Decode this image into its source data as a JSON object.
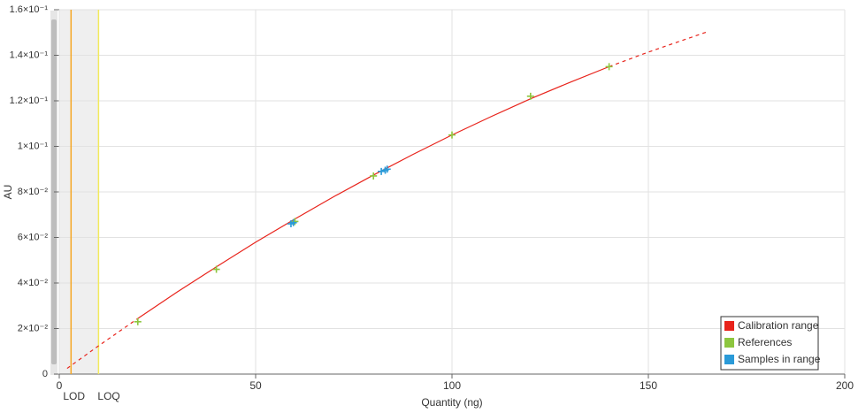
{
  "chart_data": {
    "type": "line",
    "x_label": "Quantity (ng)",
    "y_label": "AU",
    "xlim": [
      0,
      200
    ],
    "xticks": [
      0,
      50,
      100,
      150,
      200
    ],
    "ylim": [
      0,
      0.16
    ],
    "yticks": [
      0,
      {
        "value": 0.02,
        "label": "2×10⁻²"
      },
      {
        "value": 0.04,
        "label": "4×10⁻²"
      },
      {
        "value": 0.06,
        "label": "6×10⁻²"
      },
      {
        "value": 0.08,
        "label": "8×10⁻²"
      },
      {
        "value": 0.1,
        "label": "1×10⁻¹"
      },
      {
        "value": 0.12,
        "label": "1.2×10⁻¹"
      },
      {
        "value": 0.14,
        "label": "1.4×10⁻¹"
      },
      {
        "value": 0.16,
        "label": "1.6×10⁻¹"
      }
    ],
    "grid": true,
    "legend": "lower-right",
    "limits": [
      {
        "label": "LOD",
        "value": 3,
        "color": "#f5a623"
      },
      {
        "label": "LOQ",
        "value": 10,
        "color": "#f2ea5c"
      }
    ],
    "series": [
      {
        "name": "Calibration range",
        "type": "line",
        "color": "#e8231b",
        "x": [
          20,
          30,
          40,
          50,
          60,
          70,
          80,
          90,
          100,
          110,
          120,
          130,
          140
        ],
        "values": [
          0.0244,
          0.036,
          0.0471,
          0.0579,
          0.0681,
          0.078,
          0.0874,
          0.0964,
          0.105,
          0.1131,
          0.1209,
          0.1281,
          0.135
        ]
      },
      {
        "name": "References",
        "type": "scatter",
        "color": "#8dc63f",
        "x": [
          20,
          40,
          60,
          80,
          100,
          120,
          140
        ],
        "values": [
          0.023,
          0.046,
          0.067,
          0.087,
          0.105,
          0.122,
          0.135
        ]
      },
      {
        "name": "Samples in range",
        "type": "scatter",
        "color": "#2a9ad8",
        "x": [
          59,
          59.6,
          82,
          83,
          83.5
        ],
        "values": [
          0.066,
          0.0665,
          0.089,
          0.0895,
          0.09
        ]
      }
    ],
    "extrapolation": [
      {
        "color": "#e8231b",
        "x": [
          2,
          10,
          20
        ],
        "values": [
          0.0025,
          0.0124,
          0.0244
        ]
      },
      {
        "color": "#e8231b",
        "x": [
          140,
          150,
          165
        ],
        "values": [
          0.135,
          0.1414,
          0.1503
        ]
      }
    ]
  }
}
